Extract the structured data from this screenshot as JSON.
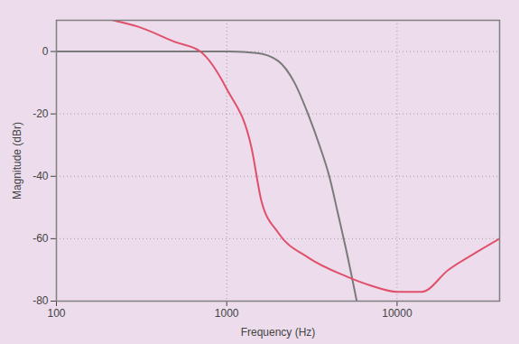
{
  "chart_data": {
    "type": "line",
    "xlabel": "Frequency (Hz)",
    "ylabel": "Magnitude (dBr)",
    "log": "x",
    "grid": true,
    "xlim": [
      100,
      40000
    ],
    "xticks": [
      100,
      1000,
      10000
    ],
    "ylim": [
      -80,
      10
    ],
    "yticks": [
      -80,
      -60,
      -40,
      -20,
      0
    ],
    "series": [
      {
        "color": "#7a7a7a",
        "x": [
          100,
          500,
          1000,
          1500,
          2000,
          2500,
          3000,
          3500,
          4000,
          4500,
          5000,
          5800
        ],
        "values": [
          0,
          0,
          0,
          -0.5,
          -3,
          -10,
          -20,
          -30,
          -40,
          -52,
          -63,
          -80
        ]
      },
      {
        "color": "#e0506a",
        "x": [
          215,
          300,
          500,
          700,
          1000,
          1400,
          1600,
          2000,
          3000,
          5000,
          7000,
          10000,
          14000,
          20000,
          30000,
          40000
        ],
        "values": [
          10,
          8,
          3,
          0,
          -12,
          -31,
          -48,
          -58,
          -66,
          -72,
          -75,
          -77,
          -77,
          -70,
          -64,
          -60
        ]
      }
    ]
  }
}
